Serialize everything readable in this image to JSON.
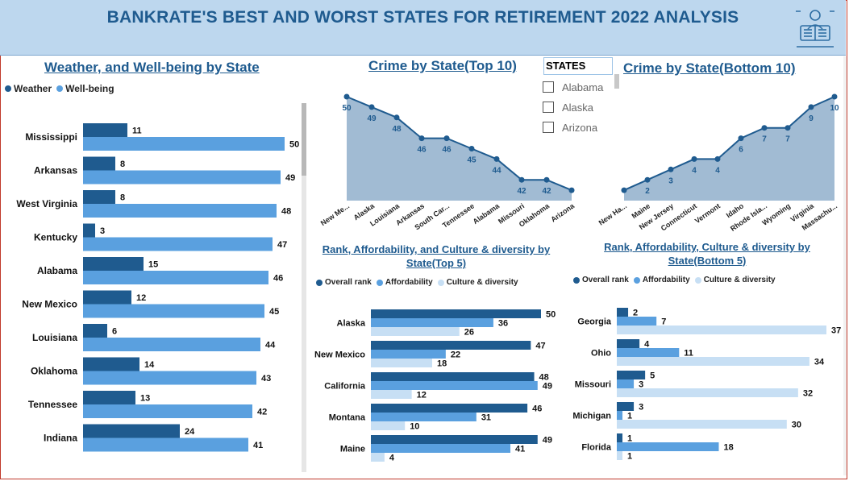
{
  "header": {
    "title": "BANKRATE'S BEST AND WORST STATES FOR RETIREMENT 2022 ANALYSIS",
    "logo_icon": "person-reading-icon"
  },
  "colors": {
    "dark": "#1f5b8f",
    "medium": "#5aa0df",
    "light": "#c7dff4",
    "area": "#a1bbd3",
    "line": "#1f5b8f"
  },
  "slicer": {
    "header": "STATES",
    "items": [
      "Alabama",
      "Alaska",
      "Arizona"
    ]
  },
  "chart_data": [
    {
      "id": "weather",
      "type": "bar",
      "orientation": "horizontal",
      "title": "Weather, and Well-being by State",
      "categories": [
        "Mississippi",
        "Arkansas",
        "West Virginia",
        "Kentucky",
        "Alabama",
        "New Mexico",
        "Louisiana",
        "Oklahoma",
        "Tennessee",
        "Indiana"
      ],
      "series": [
        {
          "name": "Weather",
          "values": [
            11,
            8,
            8,
            3,
            15,
            12,
            6,
            14,
            13,
            24
          ]
        },
        {
          "name": "Well-being",
          "values": [
            50,
            49,
            48,
            47,
            46,
            45,
            44,
            43,
            42,
            41
          ]
        }
      ],
      "xlim": [
        0,
        50
      ],
      "legend": "top-left"
    },
    {
      "id": "crime_top",
      "type": "area",
      "title": "Crime by State(Top 10)",
      "categories": [
        "New Me...",
        "Alaska",
        "Louisiana",
        "Arkansas",
        "South Car...",
        "Tennessee",
        "Alabama",
        "Missouri",
        "Oklahoma",
        "Arizona"
      ],
      "values": [
        50,
        49,
        48,
        46,
        46,
        45,
        44,
        42,
        42,
        41
      ],
      "labels": [
        "50",
        "49",
        "48",
        "46",
        "46",
        "45",
        "44",
        "42",
        "42",
        ""
      ]
    },
    {
      "id": "crime_bottom",
      "type": "area",
      "title": "Crime by State(Bottom 10)",
      "categories": [
        "New Ha...",
        "Maine",
        "New Jersey",
        "Connecticut",
        "Vermont",
        "Idaho",
        "Rhode Isla...",
        "Wyoming",
        "Virginia",
        "Massachu..."
      ],
      "values": [
        1,
        2,
        3,
        4,
        4,
        6,
        7,
        7,
        9,
        10
      ],
      "labels": [
        "",
        "2",
        "3",
        "4",
        "4",
        "6",
        "7",
        "7",
        "9",
        "10"
      ]
    },
    {
      "id": "top5",
      "type": "bar",
      "orientation": "horizontal",
      "title": "Rank, Affordability, and Culture & diversity by State(Top 5)",
      "categories": [
        "Alaska",
        "New Mexico",
        "California",
        "Montana",
        "Maine"
      ],
      "series": [
        {
          "name": "Overall rank",
          "values": [
            50,
            47,
            48,
            46,
            49
          ]
        },
        {
          "name": "Affordability",
          "values": [
            36,
            22,
            49,
            31,
            41
          ]
        },
        {
          "name": "Culture & diversity",
          "values": [
            26,
            18,
            12,
            10,
            4
          ]
        }
      ],
      "xlim": [
        0,
        50
      ],
      "legend": "top-left"
    },
    {
      "id": "bottom5",
      "type": "bar",
      "orientation": "horizontal",
      "title": "Rank, Affordability, Culture & diversity by State(Bottom 5)",
      "categories": [
        "Georgia",
        "Ohio",
        "Missouri",
        "Michigan",
        "Florida"
      ],
      "series": [
        {
          "name": "Overall rank",
          "values": [
            2,
            4,
            5,
            3,
            1
          ]
        },
        {
          "name": "Affordability",
          "values": [
            7,
            11,
            3,
            1,
            18
          ]
        },
        {
          "name": "Culture & diversity",
          "values": [
            37,
            34,
            32,
            30,
            1
          ]
        }
      ],
      "xlim": [
        0,
        40
      ],
      "legend": "top-left"
    }
  ]
}
